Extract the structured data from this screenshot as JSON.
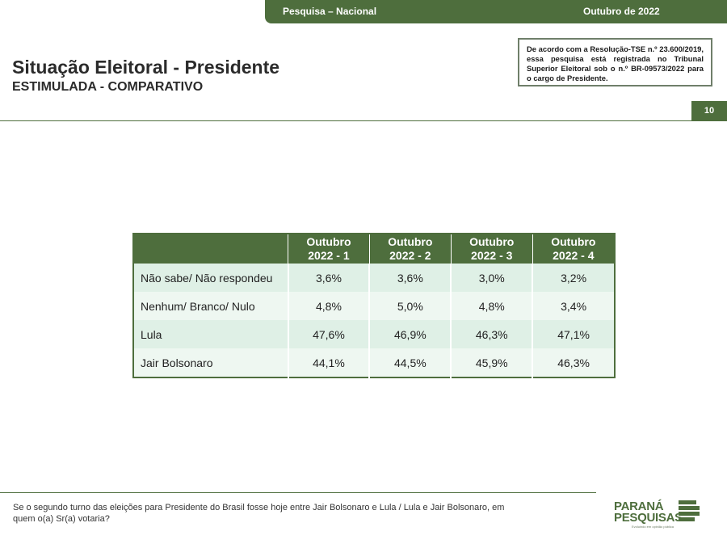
{
  "header": {
    "left_label": "Pesquisa – Nacional",
    "right_label": "Outubro de 2022"
  },
  "title": "Situação Eleitoral - Presidente",
  "subtitle": "ESTIMULADA - COMPARATIVO",
  "tse_notice": "De acordo com a Resolução-TSE n.º 23.600/2019, essa pesquisa está registrada no Tribunal Superior Eleitoral sob o n.º BR-09573/2022 para o cargo de Presidente.",
  "page_number": "10",
  "table": {
    "columns": [
      {
        "line1": "Outubro",
        "line2": "2022 - 1"
      },
      {
        "line1": "Outubro",
        "line2": "2022 - 2"
      },
      {
        "line1": "Outubro",
        "line2": "2022 - 3"
      },
      {
        "line1": "Outubro",
        "line2": "2022 - 4"
      }
    ],
    "rows": [
      {
        "label": "Não sabe/ Não respondeu",
        "values": [
          "3,6%",
          "3,6%",
          "3,0%",
          "3,2%"
        ]
      },
      {
        "label": "Nenhum/ Branco/ Nulo",
        "values": [
          "4,8%",
          "5,0%",
          "4,8%",
          "3,4%"
        ]
      },
      {
        "label": "Lula",
        "values": [
          "47,6%",
          "46,9%",
          "46,3%",
          "47,1%"
        ]
      },
      {
        "label": "Jair Bolsonaro",
        "values": [
          "44,1%",
          "44,5%",
          "45,9%",
          "46,3%"
        ]
      }
    ]
  },
  "footer": {
    "question": "Se o segundo turno das eleições para Presidente do Brasil fosse hoje entre Jair Bolsonaro e Lula / Lula e Jair Bolsonaro, em quem o(a) Sr(a) votaria?"
  },
  "logo": {
    "line1": "PARANÁ",
    "line2": "PESQUISAS",
    "tagline": "Evoluindo em opinião pública",
    "colors": {
      "brand": "#4e6e3d"
    }
  },
  "colors": {
    "accent": "#4e6e3d",
    "row_odd": "#dff0e6",
    "row_even": "#eef7f1"
  }
}
